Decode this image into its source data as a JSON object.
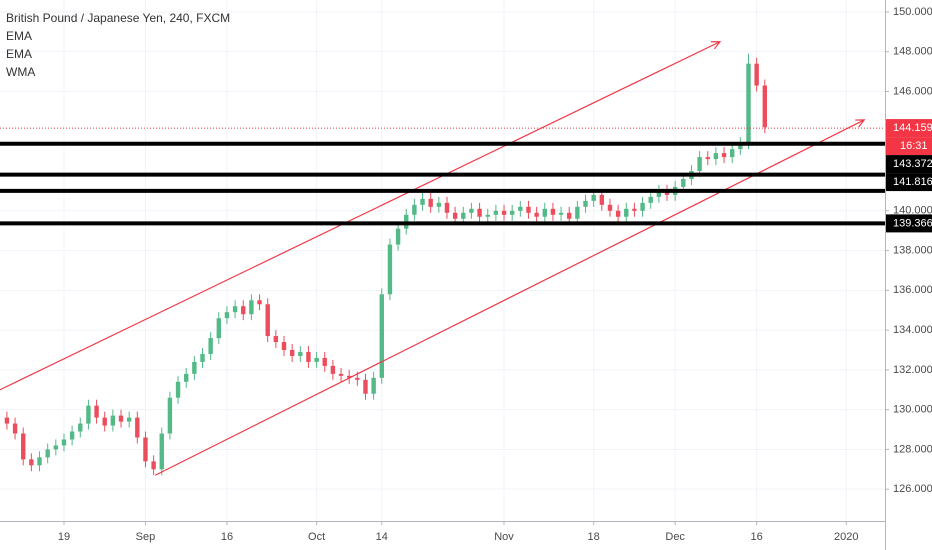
{
  "chart_data": {
    "type": "candlestick",
    "title": "British Pound / Japanese Yen, 240, FXCM",
    "indicators": [
      "EMA",
      "EMA",
      "WMA"
    ],
    "x": [
      -7,
      -6,
      -5,
      -4,
      -3,
      -2,
      -1,
      0,
      1,
      2,
      3,
      4,
      5,
      6,
      7,
      8,
      9,
      10,
      11,
      12,
      13,
      14,
      15,
      16,
      17,
      18,
      19,
      20,
      21,
      22,
      23,
      24,
      25,
      26,
      27,
      28,
      29,
      30,
      31,
      32,
      33,
      34,
      35,
      36,
      37,
      38,
      39,
      40,
      41,
      42,
      43,
      44,
      45,
      46,
      47,
      48,
      49,
      50,
      51,
      52,
      53,
      54,
      55,
      56,
      57,
      58,
      59,
      60,
      61,
      62,
      63,
      64,
      65,
      66,
      67,
      68,
      69,
      70,
      71,
      72,
      73,
      74,
      75,
      76,
      77,
      78,
      79,
      80,
      81,
      82,
      83,
      84,
      85,
      86
    ],
    "open": [
      129.6,
      129.3,
      128.8,
      127.5,
      127.2,
      127.6,
      128.0,
      128.2,
      128.5,
      128.9,
      129.3,
      130.2,
      129.6,
      129.2,
      129.7,
      129.4,
      129.6,
      128.6,
      127.4,
      127.0,
      128.8,
      130.6,
      131.4,
      131.8,
      132.4,
      132.8,
      133.6,
      134.6,
      134.9,
      135.2,
      134.8,
      135.5,
      135.3,
      133.7,
      133.4,
      133.0,
      132.7,
      132.9,
      132.4,
      132.6,
      132.2,
      131.8,
      131.7,
      131.6,
      131.5,
      130.8,
      131.6,
      135.8,
      138.3,
      139.1,
      139.8,
      140.3,
      140.6,
      140.2,
      140.4,
      139.9,
      139.6,
      139.9,
      140.1,
      139.7,
      139.8,
      140.0,
      139.8,
      140.0,
      140.2,
      139.9,
      139.7,
      140.1,
      139.8,
      139.9,
      139.6,
      140.2,
      140.5,
      140.8,
      140.3,
      140.0,
      139.7,
      140.1,
      140.0,
      140.4,
      140.7,
      141.0,
      140.8,
      141.2,
      141.6,
      142.0,
      142.7,
      142.6,
      142.9,
      142.7,
      143.1,
      143.4,
      147.4,
      146.3
    ],
    "high": [
      129.9,
      129.6,
      129.1,
      127.8,
      127.9,
      128.3,
      128.5,
      128.8,
      129.2,
      129.6,
      130.5,
      130.5,
      129.9,
      130.0,
      130.0,
      129.9,
      129.9,
      128.9,
      127.7,
      129.1,
      130.9,
      131.7,
      132.1,
      132.7,
      133.1,
      133.9,
      134.9,
      135.2,
      135.5,
      135.5,
      135.8,
      135.8,
      135.6,
      134.0,
      133.7,
      133.3,
      133.2,
      133.2,
      132.9,
      132.9,
      132.5,
      132.1,
      132.0,
      131.9,
      131.8,
      131.9,
      136.1,
      138.6,
      139.4,
      140.1,
      140.6,
      140.9,
      140.9,
      140.7,
      140.7,
      140.2,
      140.2,
      140.4,
      140.4,
      140.1,
      140.3,
      140.3,
      140.3,
      140.5,
      140.5,
      140.2,
      140.4,
      140.4,
      140.2,
      140.2,
      140.5,
      140.8,
      141.1,
      141.1,
      140.6,
      140.3,
      140.4,
      140.4,
      140.7,
      141.0,
      141.3,
      141.3,
      141.5,
      141.9,
      142.3,
      143.0,
      143.0,
      143.2,
      143.2,
      143.4,
      143.7,
      147.9,
      147.7,
      146.6
    ],
    "low": [
      129.0,
      128.5,
      127.2,
      126.9,
      126.9,
      127.3,
      127.7,
      127.9,
      128.2,
      128.6,
      129.0,
      129.3,
      128.9,
      128.9,
      129.1,
      129.1,
      128.3,
      127.1,
      126.7,
      126.7,
      128.5,
      130.3,
      131.1,
      131.5,
      132.1,
      132.5,
      133.3,
      134.3,
      134.6,
      134.5,
      134.5,
      135.0,
      133.4,
      133.1,
      132.7,
      132.4,
      132.4,
      132.1,
      132.1,
      131.9,
      131.5,
      131.4,
      131.3,
      131.2,
      130.5,
      130.5,
      131.3,
      135.5,
      138.0,
      138.8,
      139.5,
      140.0,
      139.9,
      139.9,
      139.6,
      139.3,
      139.3,
      139.6,
      139.4,
      139.4,
      139.5,
      139.5,
      139.5,
      139.7,
      139.6,
      139.4,
      139.4,
      139.5,
      139.5,
      139.3,
      139.3,
      139.9,
      140.2,
      140.0,
      139.7,
      139.4,
      139.4,
      139.7,
      139.7,
      140.1,
      140.4,
      140.5,
      140.5,
      140.9,
      141.3,
      141.7,
      142.3,
      142.3,
      142.4,
      142.4,
      142.8,
      143.1,
      146.0,
      143.9
    ],
    "close": [
      129.3,
      128.8,
      127.5,
      127.2,
      127.6,
      128.0,
      128.2,
      128.5,
      128.9,
      129.3,
      130.2,
      129.6,
      129.2,
      129.7,
      129.4,
      129.6,
      128.6,
      127.4,
      127.0,
      128.8,
      130.6,
      131.4,
      131.8,
      132.4,
      132.8,
      133.6,
      134.6,
      134.9,
      135.2,
      134.8,
      135.5,
      135.3,
      133.7,
      133.4,
      133.0,
      132.7,
      132.9,
      132.4,
      132.6,
      132.2,
      131.8,
      131.7,
      131.6,
      131.5,
      130.8,
      131.6,
      135.8,
      138.3,
      139.1,
      139.8,
      140.3,
      140.6,
      140.2,
      140.4,
      139.9,
      139.6,
      139.9,
      140.1,
      139.7,
      139.8,
      140.0,
      139.8,
      140.0,
      140.2,
      139.9,
      139.7,
      140.1,
      139.8,
      139.9,
      139.6,
      140.2,
      140.5,
      140.8,
      140.3,
      140.0,
      139.7,
      140.1,
      140.0,
      140.4,
      140.7,
      141.0,
      140.8,
      141.2,
      141.6,
      142.0,
      142.7,
      142.6,
      142.9,
      142.7,
      143.1,
      143.4,
      147.4,
      146.3,
      144.2
    ],
    "up_color": "#53b987",
    "down_color": "#eb4d5c",
    "last_price": 144.159,
    "last_price_color": "#f23645",
    "countdown": "16:31",
    "price_levels": [
      143.372,
      141.816,
      139.366
    ],
    "extra_levels": [
      141.0
    ],
    "level_color": "#000000",
    "trend_lines": [
      {
        "start": [
          -7.85,
          131.0
        ],
        "end": [
          80.5,
          148.5
        ]
      },
      {
        "start": [
          11.2,
          126.7
        ],
        "end": [
          98.2,
          144.57
        ]
      }
    ],
    "trend_color": "#f23645",
    "xlim": [
      -7.85,
      100.75
    ],
    "ylim": [
      124.4,
      150.6
    ],
    "xticks": [
      {
        "value": 0,
        "label": "19"
      },
      {
        "value": 10,
        "label": "Sep"
      },
      {
        "value": 20,
        "label": "16"
      },
      {
        "value": 31,
        "label": "Oct"
      },
      {
        "value": 39,
        "label": "14"
      },
      {
        "value": 54,
        "label": "Nov"
      },
      {
        "value": 65,
        "label": "18"
      },
      {
        "value": 75,
        "label": "Dec"
      },
      {
        "value": 85,
        "label": "16"
      },
      {
        "value": 96,
        "label": "2020"
      }
    ],
    "yticks": [
      {
        "value": 126,
        "label": "126.000"
      },
      {
        "value": 128,
        "label": "128.000"
      },
      {
        "value": 130,
        "label": "130.000"
      },
      {
        "value": 132,
        "label": "132.000"
      },
      {
        "value": 134,
        "label": "134.000"
      },
      {
        "value": 136,
        "label": "136.000"
      },
      {
        "value": 138,
        "label": "138.000"
      },
      {
        "value": 140,
        "label": "140.000"
      },
      {
        "value": 146,
        "label": "146.000"
      },
      {
        "value": 148,
        "label": "148.000"
      },
      {
        "value": 150,
        "label": "150.000"
      }
    ]
  }
}
